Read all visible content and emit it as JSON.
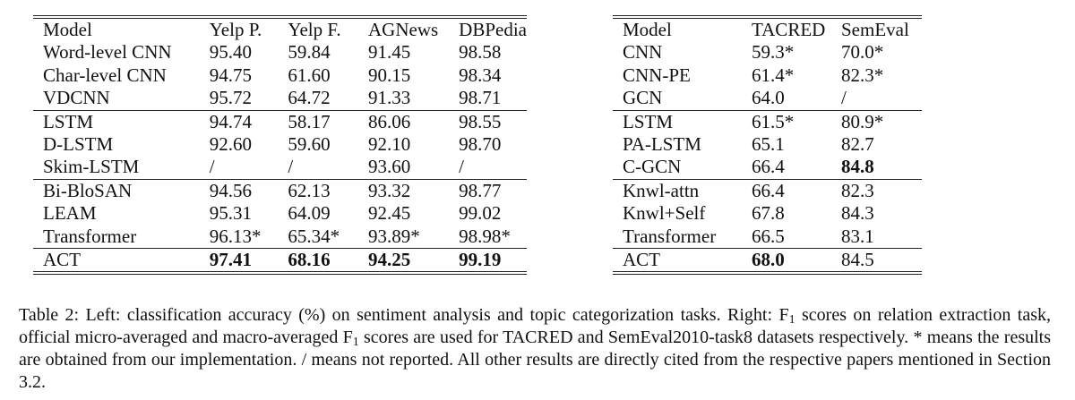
{
  "left_table": {
    "columns": [
      "Model",
      "Yelp P.",
      "Yelp F.",
      "AGNews",
      "DBPedia"
    ],
    "col_widths": [
      "188px",
      "89px",
      "91px",
      "102px",
      "auto"
    ],
    "rows": [
      [
        "Word-level CNN",
        "95.40",
        "59.84",
        "91.45",
        "98.58"
      ],
      [
        "Char-level CNN",
        "94.75",
        "61.60",
        "90.15",
        "98.34"
      ],
      [
        "VDCNN",
        "95.72",
        "64.72",
        "91.33",
        "98.71"
      ],
      [
        "LSTM",
        "94.74",
        "58.17",
        "86.06",
        "98.55"
      ],
      [
        "D-LSTM",
        "92.60",
        "59.60",
        "92.10",
        "98.70"
      ],
      [
        "Skim-LSTM",
        "/",
        "/",
        "93.60",
        "/"
      ],
      [
        "Bi-BloSAN",
        "94.56",
        "62.13",
        "93.32",
        "98.77"
      ],
      [
        "LEAM",
        "95.31",
        "64.09",
        "92.45",
        "99.02"
      ],
      [
        "Transformer",
        "96.13*",
        "65.34*",
        "93.89*",
        "98.98*"
      ],
      [
        "ACT",
        "97.41",
        "68.16",
        "94.25",
        "99.19"
      ]
    ],
    "separator_before_rows": [
      3,
      6,
      9
    ],
    "bold_cells": [
      [
        9,
        1
      ],
      [
        9,
        2
      ],
      [
        9,
        3
      ],
      [
        9,
        4
      ]
    ]
  },
  "right_table": {
    "columns": [
      "Model",
      "TACRED",
      "SemEval"
    ],
    "col_widths": [
      "144px",
      "100px",
      "auto"
    ],
    "rows": [
      [
        "CNN",
        "59.3*",
        "70.0*"
      ],
      [
        "CNN-PE",
        "61.4*",
        "82.3*"
      ],
      [
        "GCN",
        "64.0",
        "/"
      ],
      [
        "LSTM",
        "61.5*",
        "80.9*"
      ],
      [
        "PA-LSTM",
        "65.1",
        "82.7"
      ],
      [
        "C-GCN",
        "66.4",
        "84.8"
      ],
      [
        "Knwl-attn",
        "66.4",
        "82.3"
      ],
      [
        "Knwl+Self",
        "67.8",
        "84.3"
      ],
      [
        "Transformer",
        "66.5",
        "83.1"
      ],
      [
        "ACT",
        "68.0",
        "84.5"
      ]
    ],
    "separator_before_rows": [
      3,
      6,
      9
    ],
    "bold_cells": [
      [
        5,
        2
      ],
      [
        9,
        1
      ]
    ]
  },
  "caption": {
    "part1": "Table 2: Left: classification accuracy (%) on sentiment analysis and topic categorization tasks. Right: F",
    "sub1": "1",
    "part2": " scores on relation extraction task, official micro-averaged and macro-averaged F",
    "sub2": "1",
    "part3": " scores are used for TACRED and SemEval2010-task8 datasets respectively. * means the results are obtained from our implementation. / means not reported. All other results are directly cited from the respective papers mentioned in Section 3.2."
  }
}
